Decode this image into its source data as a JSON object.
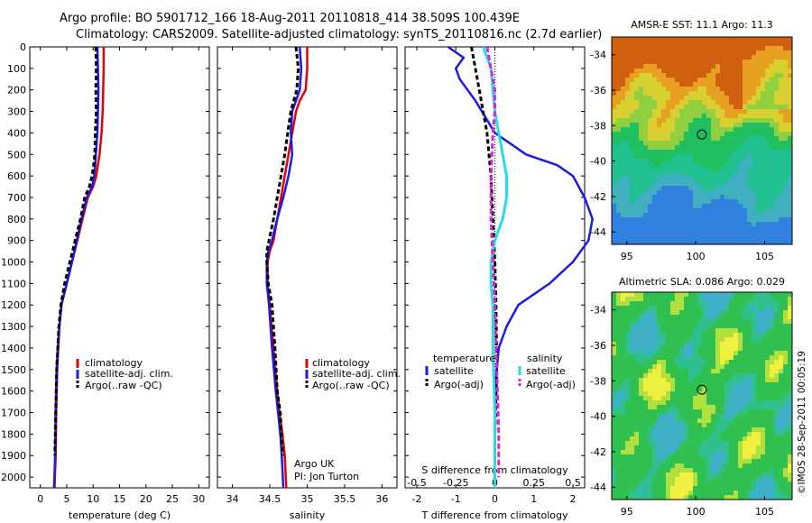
{
  "header": {
    "title_line1": "Argo profile: BO 5901712_166 18-Aug-2011 20110818_414 38.509S 100.439E",
    "title_line2": "Climatology: CARS2009. Satellite-adjusted climatology: synTS_20110816.nc (2.7d earlier)"
  },
  "colors": {
    "climatology": "#e60000",
    "satellite": "#1a1ae6",
    "argo": "#000000",
    "sat_salinity": "#22e0e0",
    "argo_salinity": "#e020e0"
  },
  "depth_axis": {
    "ylim": [
      0,
      2050
    ],
    "ticks": [
      0,
      100,
      200,
      300,
      400,
      500,
      600,
      700,
      800,
      900,
      1000,
      1100,
      1200,
      1300,
      1400,
      1500,
      1600,
      1700,
      1800,
      1900,
      2000
    ]
  },
  "chart_data": [
    {
      "type": "line",
      "xlabel": "temperature (deg C)",
      "xlim": [
        -2,
        32
      ],
      "xticks": [
        0,
        5,
        10,
        15,
        20,
        25,
        30
      ],
      "ylim": [
        0,
        2050
      ],
      "legend": [
        "climatology",
        "satellite-adj. clim.",
        "Argo(..raw -QC)"
      ],
      "series": [
        {
          "name": "climatology",
          "x": [
            12,
            12,
            11.9,
            11.8,
            11.6,
            11.2,
            10.9,
            10.6,
            10,
            9,
            8,
            7,
            6,
            5,
            4,
            3.6,
            3.4,
            3.2,
            3,
            2.9,
            2.7
          ],
          "y": [
            0,
            100,
            200,
            300,
            400,
            500,
            550,
            600,
            650,
            700,
            800,
            900,
            1000,
            1100,
            1200,
            1300,
            1400,
            1500,
            1700,
            1900,
            2050
          ]
        },
        {
          "name": "satellite-adj. clim.",
          "x": [
            10.8,
            10.9,
            11,
            10.9,
            10.8,
            10.5,
            10.4,
            10.2,
            9.8,
            8.8,
            7.8,
            6.9,
            6,
            5,
            4,
            3.6,
            3.3,
            3.1,
            2.9,
            2.8,
            2.6
          ],
          "y": [
            0,
            100,
            200,
            300,
            400,
            500,
            550,
            600,
            650,
            700,
            800,
            900,
            1000,
            1100,
            1200,
            1300,
            1400,
            1500,
            1700,
            1900,
            2050
          ]
        },
        {
          "name": "Argo(..raw -QC)",
          "x": [
            10.5,
            10.6,
            10.5,
            10.6,
            10.4,
            10.3,
            10.1,
            9.8,
            9.3,
            8.4,
            7.6,
            6.6,
            5.6,
            4.6,
            3.9,
            3.5,
            3.3,
            3.1,
            2.9,
            2.75
          ],
          "y": [
            0,
            100,
            200,
            300,
            400,
            500,
            550,
            600,
            650,
            700,
            800,
            900,
            1000,
            1100,
            1200,
            1300,
            1400,
            1500,
            1700,
            1900
          ]
        }
      ]
    },
    {
      "type": "line",
      "xlabel": "salinity",
      "xlim": [
        33.8,
        36.2
      ],
      "xticks": [
        34,
        34.5,
        35,
        35.5,
        36
      ],
      "ylim": [
        0,
        2050
      ],
      "legend": [
        "climatology",
        "satellite-adj. clim.",
        "Argo(..raw -QC)"
      ],
      "annotation": [
        "Argo UK",
        "PI: Jon Turton"
      ],
      "series": [
        {
          "name": "climatology",
          "x": [
            35.0,
            35.0,
            34.98,
            34.9,
            34.85,
            34.8,
            34.75,
            34.7,
            34.65,
            34.6,
            34.55,
            34.5,
            34.47,
            34.47,
            34.5,
            34.55,
            34.6,
            34.63,
            34.67,
            34.7,
            34.72
          ],
          "y": [
            0,
            100,
            200,
            250,
            300,
            400,
            500,
            600,
            700,
            800,
            900,
            950,
            1000,
            1100,
            1200,
            1400,
            1600,
            1700,
            1800,
            1900,
            2050
          ]
        },
        {
          "name": "satellite-adj. clim.",
          "x": [
            34.9,
            34.92,
            34.9,
            34.85,
            34.8,
            34.78,
            34.8,
            34.75,
            34.68,
            34.6,
            34.53,
            34.48,
            34.46,
            34.46,
            34.49,
            34.53,
            34.58,
            34.61,
            34.64,
            34.66,
            34.68
          ],
          "y": [
            0,
            100,
            200,
            250,
            300,
            400,
            500,
            600,
            700,
            800,
            900,
            950,
            1000,
            1100,
            1200,
            1400,
            1600,
            1700,
            1800,
            1900,
            2050
          ]
        },
        {
          "name": "Argo(..raw -QC)",
          "x": [
            34.85,
            34.88,
            34.86,
            34.82,
            34.78,
            34.74,
            34.7,
            34.65,
            34.6,
            34.55,
            34.49,
            34.46,
            34.46,
            34.48,
            34.53,
            34.57,
            34.6,
            34.64,
            34.67
          ],
          "y": [
            0,
            100,
            200,
            250,
            300,
            400,
            500,
            600,
            700,
            800,
            900,
            950,
            1000,
            1100,
            1200,
            1400,
            1600,
            1700,
            1900
          ]
        }
      ]
    },
    {
      "type": "line",
      "xlabel": "T difference from climatology",
      "xlabel_top": "S difference from climatology",
      "xlim": [
        -2.3,
        2.3
      ],
      "xticks": [
        -2,
        -1,
        0,
        1,
        2
      ],
      "xticks_top": [
        "-0.5",
        "-0.25",
        "0",
        "0.25",
        "0.5"
      ],
      "ylim": [
        0,
        2050
      ],
      "legend": {
        "headers": [
          "temperature",
          "salinity"
        ],
        "entries": [
          "satellite",
          "Argo(-adj)",
          "satellite",
          "Argo(-adj)"
        ]
      },
      "series": [
        {
          "name": "temperature satellite",
          "x": [
            -1.2,
            -0.8,
            -1.0,
            -0.9,
            -0.7,
            -0.5,
            0,
            0.8,
            1.6,
            2.0,
            2.3,
            2.5,
            2.4,
            2.0,
            1.4,
            0.6,
            0.3,
            0.1,
            0,
            0,
            0
          ],
          "y": [
            0,
            50,
            100,
            150,
            200,
            250,
            400,
            500,
            550,
            600,
            700,
            800,
            900,
            1000,
            1100,
            1200,
            1300,
            1400,
            1600,
            1800,
            2050
          ]
        },
        {
          "name": "temperature Argo(-adj)",
          "x": [
            -0.6,
            -0.5,
            -0.4,
            -0.3,
            -0.2,
            -0.1,
            -0.05,
            0,
            0.03,
            0.05,
            0,
            0
          ],
          "y": [
            0,
            100,
            200,
            300,
            400,
            600,
            800,
            1000,
            1200,
            1500,
            1800,
            2050
          ]
        },
        {
          "name": "salinity satellite",
          "x": [
            -0.3,
            -0.1,
            -0.05,
            0,
            0.1,
            0.2,
            0.3,
            0.3,
            0.2,
            0,
            -0.1,
            -0.1,
            -0.05,
            -0.05,
            0,
            0
          ],
          "y": [
            0,
            100,
            200,
            300,
            400,
            500,
            600,
            700,
            800,
            900,
            1000,
            1100,
            1200,
            1400,
            1700,
            2050
          ]
        },
        {
          "name": "salinity Argo(-adj)",
          "x": [
            -0.2,
            -0.1,
            0,
            0,
            -0.05,
            -0.1,
            -0.1,
            -0.05,
            0,
            0.05,
            0.1,
            0.1
          ],
          "y": [
            0,
            100,
            200,
            300,
            400,
            600,
            800,
            1000,
            1200,
            1500,
            1800,
            2000
          ]
        }
      ]
    }
  ],
  "maps": [
    {
      "title": "AMSR-E SST: 11.1 Argo: 11.3",
      "xticks": [
        "95",
        "100",
        "105"
      ],
      "yticks": [
        "-34",
        "-36",
        "-38",
        "-40",
        "-42",
        "-44"
      ]
    },
    {
      "title": "Altimetric SLA: 0.086 Argo: 0.029",
      "xticks": [
        "95",
        "100",
        "105"
      ],
      "yticks": [
        "-34",
        "-36",
        "-38",
        "-40",
        "-42",
        "-44"
      ]
    }
  ],
  "footer": {
    "credit": "©IMOS 28-Sep-2011 00:05:19"
  }
}
